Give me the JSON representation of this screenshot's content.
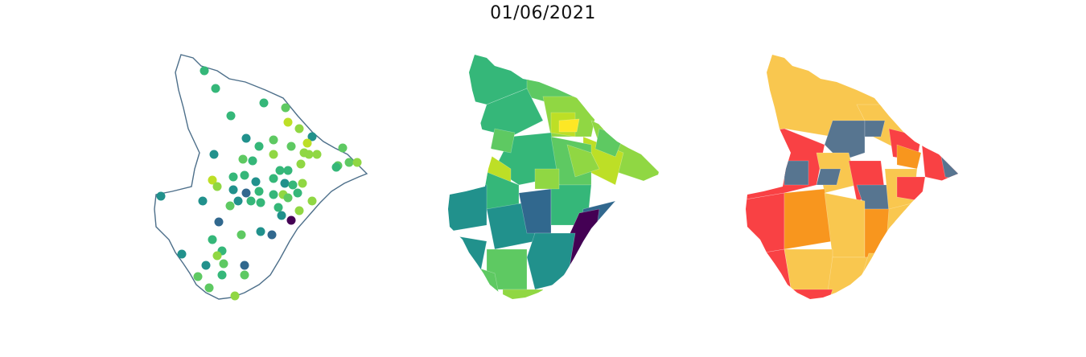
{
  "header": {
    "date_title": "01/06/2021"
  },
  "colors": {
    "outline": "#4d6f8a",
    "viridis": [
      "#440154",
      "#31688e",
      "#21918c",
      "#35b779",
      "#5ec962",
      "#90d743",
      "#bddf26",
      "#fde725"
    ],
    "categories": [
      "#f9c74f",
      "#f8961e",
      "#f94144",
      "#577590"
    ]
  },
  "maps": [
    {
      "name": "station-points",
      "style": "points on outline"
    },
    {
      "name": "municipality-choropleth",
      "style": "viridis choropleth"
    },
    {
      "name": "risk-category-map",
      "style": "four-category fill"
    }
  ]
}
